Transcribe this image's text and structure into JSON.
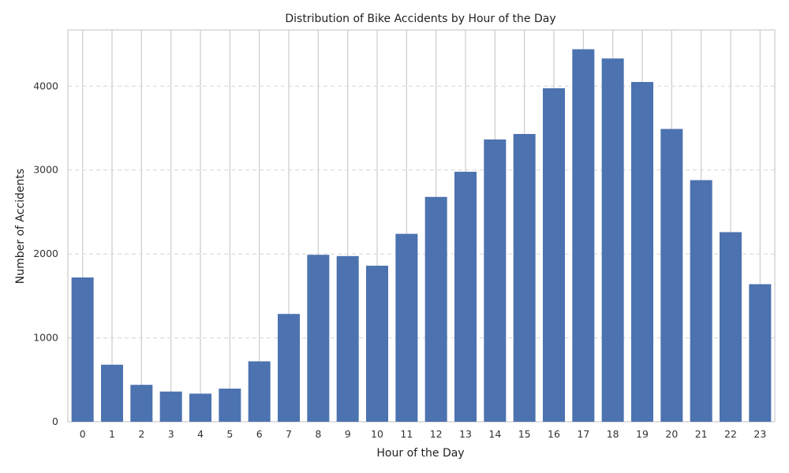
{
  "chart_data": {
    "type": "bar",
    "title": "Distribution of Bike Accidents by Hour of the Day",
    "xlabel": "Hour of the Day",
    "ylabel": "Number of Accidents",
    "categories": [
      "0",
      "1",
      "2",
      "3",
      "4",
      "5",
      "6",
      "7",
      "8",
      "9",
      "10",
      "11",
      "12",
      "13",
      "14",
      "15",
      "16",
      "17",
      "18",
      "19",
      "20",
      "21",
      "22",
      "23"
    ],
    "values": [
      1720,
      680,
      440,
      360,
      335,
      395,
      720,
      1285,
      1990,
      1975,
      1860,
      2240,
      2680,
      2980,
      3365,
      3430,
      3975,
      4440,
      4330,
      4050,
      3490,
      2880,
      2260,
      1640
    ],
    "yticks": [
      0,
      1000,
      2000,
      3000,
      4000
    ],
    "ylim": [
      0,
      4670
    ],
    "grid": {
      "x": true,
      "y": true,
      "y_style": "dashed"
    },
    "bar_color": "#4c72b0"
  }
}
